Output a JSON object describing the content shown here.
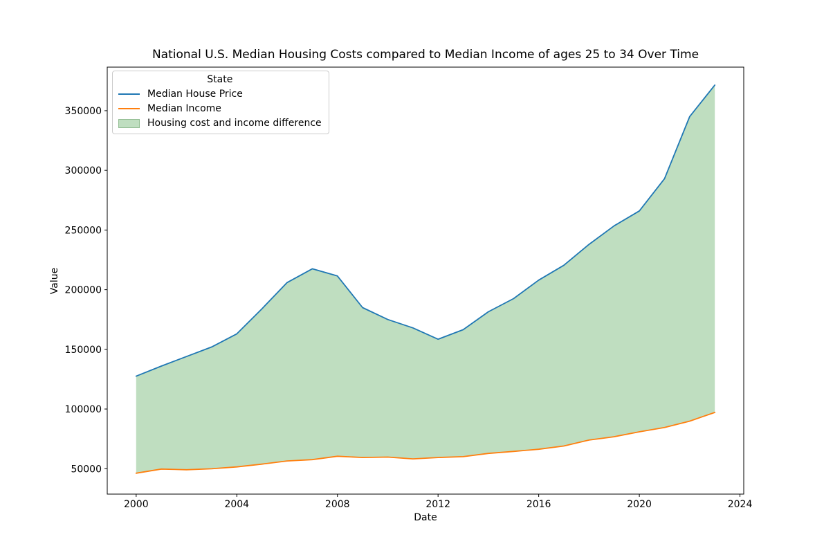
{
  "figure": {
    "title": "National U.S. Median Housing Costs compared to Median Income of ages 25 to 34 Over Time",
    "xlabel": "Date",
    "ylabel": "Value"
  },
  "legend": {
    "title": "State",
    "entries": [
      {
        "label": "Median House Price",
        "type": "line",
        "color": "#1f77b4"
      },
      {
        "label": "Median Income",
        "type": "line",
        "color": "#ff7f0e"
      },
      {
        "label": "Housing cost and income difference",
        "type": "patch",
        "color": "#bfdec0",
        "edge": "#93bd93"
      }
    ]
  },
  "chart_data": {
    "type": "line",
    "title": "National U.S. Median Housing Costs compared to Median Income of ages 25 to 34 Over Time",
    "xlabel": "Date",
    "ylabel": "Value",
    "x": [
      2000,
      2001,
      2002,
      2003,
      2004,
      2005,
      2006,
      2007,
      2008,
      2009,
      2010,
      2011,
      2012,
      2013,
      2014,
      2015,
      2016,
      2017,
      2018,
      2019,
      2020,
      2021,
      2022,
      2023
    ],
    "series": [
      {
        "name": "Median House Price",
        "color": "#1f77b4",
        "values": [
          127500,
          136000,
          144000,
          152000,
          163000,
          184000,
          206000,
          217500,
          211500,
          185000,
          175000,
          168000,
          158500,
          166500,
          181500,
          192500,
          208000,
          220500,
          238000,
          253500,
          266000,
          293000,
          345000,
          371500
        ]
      },
      {
        "name": "Median Income",
        "color": "#ff7f0e",
        "values": [
          46200,
          49700,
          49100,
          49900,
          51500,
          53800,
          56500,
          57600,
          60400,
          59400,
          59700,
          58200,
          59400,
          60100,
          62800,
          64500,
          66300,
          69000,
          74000,
          76800,
          80900,
          84500,
          89800,
          97100
        ]
      }
    ],
    "area_between": {
      "label": "Housing cost and income difference",
      "fill": "#bfdec0"
    },
    "xlim": [
      1998.85,
      2024.15
    ],
    "ylim": [
      28700,
      386500
    ],
    "xticks": [
      2000,
      2004,
      2008,
      2012,
      2016,
      2020,
      2024
    ],
    "yticks": [
      50000,
      100000,
      150000,
      200000,
      250000,
      300000,
      350000
    ],
    "grid": false,
    "legend_position": "upper left",
    "legend_title": "State"
  }
}
